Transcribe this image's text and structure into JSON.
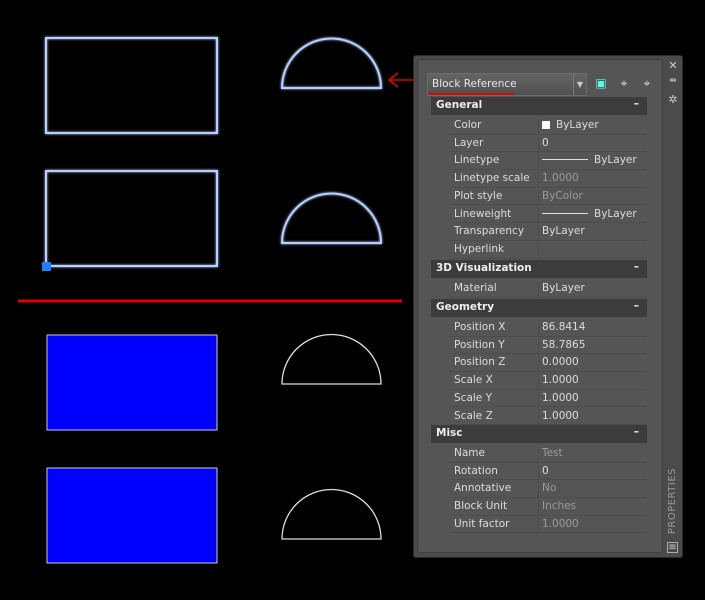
{
  "colors": {
    "selected_outline": "#b8d0ff",
    "fill": "#0000ff",
    "annotation": "#e00000",
    "grip": "#1e7fff"
  },
  "dropdown": {
    "value": "Block Reference"
  },
  "toolbar": {
    "icons": [
      "quick-select-icon",
      "select-objects-icon",
      "toggle-pickadd-icon"
    ]
  },
  "side": {
    "close": "✕",
    "auto_hide": "⇹",
    "options": "✲",
    "title": "PROPERTIES"
  },
  "sections": [
    {
      "title": "General",
      "collapse": "–",
      "rows": [
        {
          "label": "Color",
          "value": "ByLayer",
          "type": "swatch"
        },
        {
          "label": "Layer",
          "value": "0"
        },
        {
          "label": "Linetype",
          "value": "ByLayer",
          "type": "line"
        },
        {
          "label": "Linetype scale",
          "value": "1.0000",
          "dim": true
        },
        {
          "label": "Plot style",
          "value": "ByColor",
          "dim": true
        },
        {
          "label": "Lineweight",
          "value": "ByLayer",
          "type": "line"
        },
        {
          "label": "Transparency",
          "value": "ByLayer"
        },
        {
          "label": "Hyperlink",
          "value": ""
        }
      ]
    },
    {
      "title": "3D Visualization",
      "collapse": "–",
      "rows": [
        {
          "label": "Material",
          "value": "ByLayer"
        }
      ]
    },
    {
      "title": "Geometry",
      "collapse": "–",
      "rows": [
        {
          "label": "Position X",
          "value": "86.8414"
        },
        {
          "label": "Position Y",
          "value": "58.7865"
        },
        {
          "label": "Position Z",
          "value": "0.0000"
        },
        {
          "label": "Scale X",
          "value": "1.0000"
        },
        {
          "label": "Scale Y",
          "value": "1.0000"
        },
        {
          "label": "Scale Z",
          "value": "1.0000"
        }
      ]
    },
    {
      "title": "Misc",
      "collapse": "–",
      "rows": [
        {
          "label": "Name",
          "value": "Test",
          "dim": true
        },
        {
          "label": "Rotation",
          "value": "0"
        },
        {
          "label": "Annotative",
          "value": "No",
          "dim": true
        },
        {
          "label": "Block Unit",
          "value": "Inches",
          "dim": true
        },
        {
          "label": "Unit factor",
          "value": "1.0000",
          "dim": true
        }
      ]
    }
  ]
}
